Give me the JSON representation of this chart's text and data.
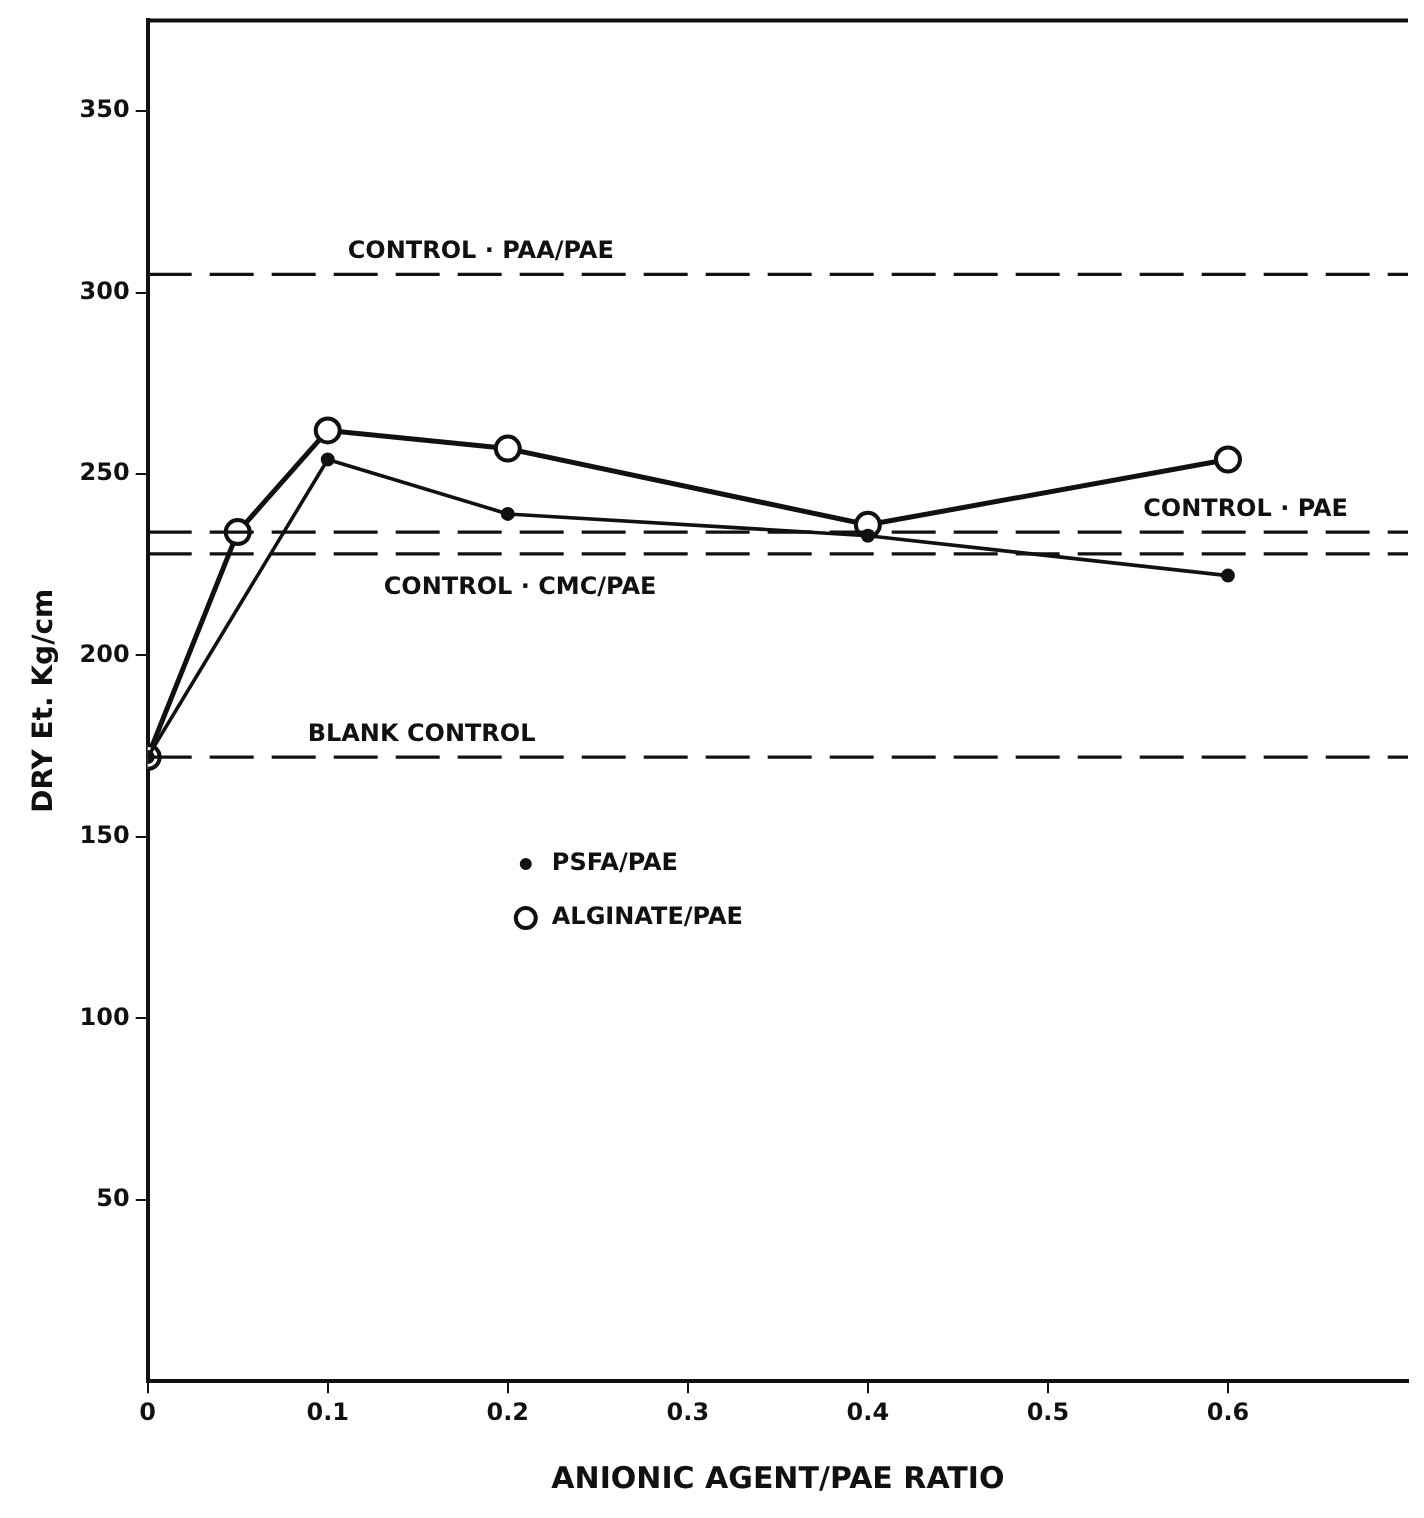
{
  "chart_data": {
    "type": "line",
    "xlabel": "ANIONIC AGENT/PAE RATIO",
    "ylabel": "DRY Et. Kg/cm",
    "xlim": [
      0,
      0.7
    ],
    "xticks": [
      0,
      0.1,
      0.2,
      0.3,
      0.4,
      0.5,
      0.6
    ],
    "ylim": [
      0,
      375
    ],
    "yticks": [
      50,
      100,
      150,
      200,
      250,
      300,
      350
    ],
    "series": [
      {
        "name": "PSFA/PAE",
        "color": "#111111",
        "x": [
          0,
          0.1,
          0.2,
          0.4,
          0.6
        ],
        "values": [
          172,
          254,
          239,
          233,
          222
        ]
      },
      {
        "name": "ALGINATE/PAE",
        "color": "#111111",
        "x": [
          0,
          0.05,
          0.1,
          0.2,
          0.4,
          0.6
        ],
        "values": [
          172,
          234,
          262,
          257,
          236,
          254
        ]
      }
    ],
    "ref_lines": [
      {
        "axis": "y",
        "value": 305,
        "label": "CONTROL · PAA/PAE",
        "line_style": "dashed"
      },
      {
        "axis": "y",
        "value": 234,
        "label": "CONTROL · PAE",
        "line_style": "dashed"
      },
      {
        "axis": "y",
        "value": 228,
        "label": "CONTROL · CMC/PAE",
        "line_style": "dashed"
      },
      {
        "axis": "y",
        "value": 172,
        "label": "BLANK CONTROL",
        "line_style": "dashed"
      }
    ],
    "legend": "center",
    "grid": false,
    "marker": "circle",
    "line_style": "solid"
  }
}
